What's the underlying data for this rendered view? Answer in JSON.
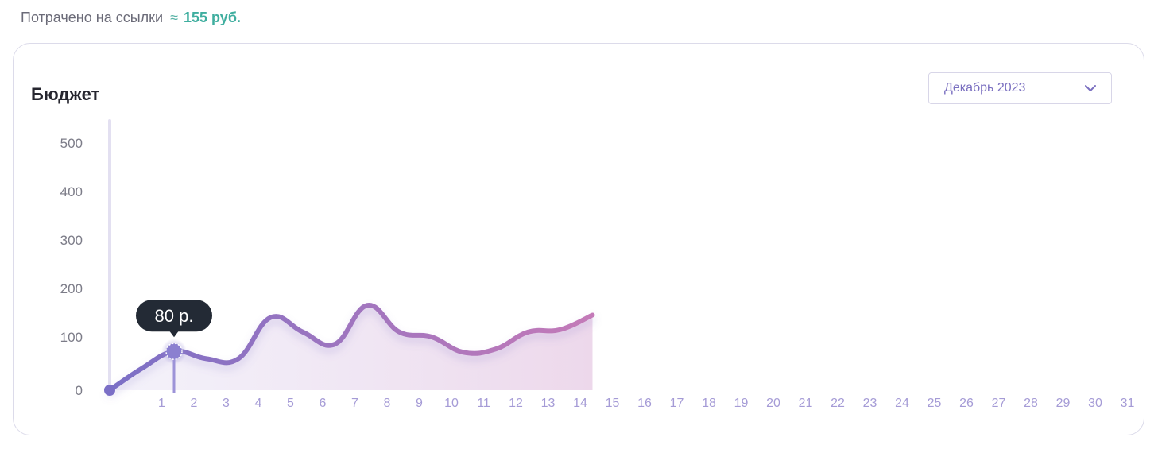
{
  "header": {
    "spent_label": "Потрачено на ссылки",
    "approx_sign": "≈",
    "spent_value": "155 руб."
  },
  "card": {
    "title": "Бюджет",
    "month_select": {
      "value": "Декабрь 2023"
    }
  },
  "tooltip": {
    "text": "80 р."
  },
  "colors": {
    "accent_teal": "#3fae9f",
    "line_start": "#7b6fc6",
    "line_end": "#c47ab8",
    "tooltip_bg": "#232a35"
  },
  "chart_data": {
    "type": "area",
    "title": "Бюджет",
    "xlabel": "",
    "ylabel": "",
    "x_ticks": [
      "1",
      "2",
      "3",
      "4",
      "5",
      "6",
      "7",
      "8",
      "9",
      "10",
      "11",
      "12",
      "13",
      "14",
      "15",
      "16",
      "17",
      "18",
      "19",
      "20",
      "21",
      "22",
      "23",
      "24",
      "25",
      "26",
      "27",
      "28",
      "29",
      "30",
      "31"
    ],
    "y_ticks": [
      0,
      100,
      200,
      300,
      400,
      500
    ],
    "ylim": [
      0,
      500
    ],
    "x": [
      0,
      1,
      2,
      3,
      4,
      5,
      6,
      7,
      8,
      9,
      10,
      11,
      12,
      13,
      14,
      15
    ],
    "values": [
      0,
      45,
      80,
      65,
      65,
      150,
      120,
      95,
      175,
      120,
      110,
      78,
      85,
      120,
      125,
      155
    ],
    "highlight": {
      "x": 2,
      "y": 80
    },
    "grid": false,
    "legend": "none"
  }
}
